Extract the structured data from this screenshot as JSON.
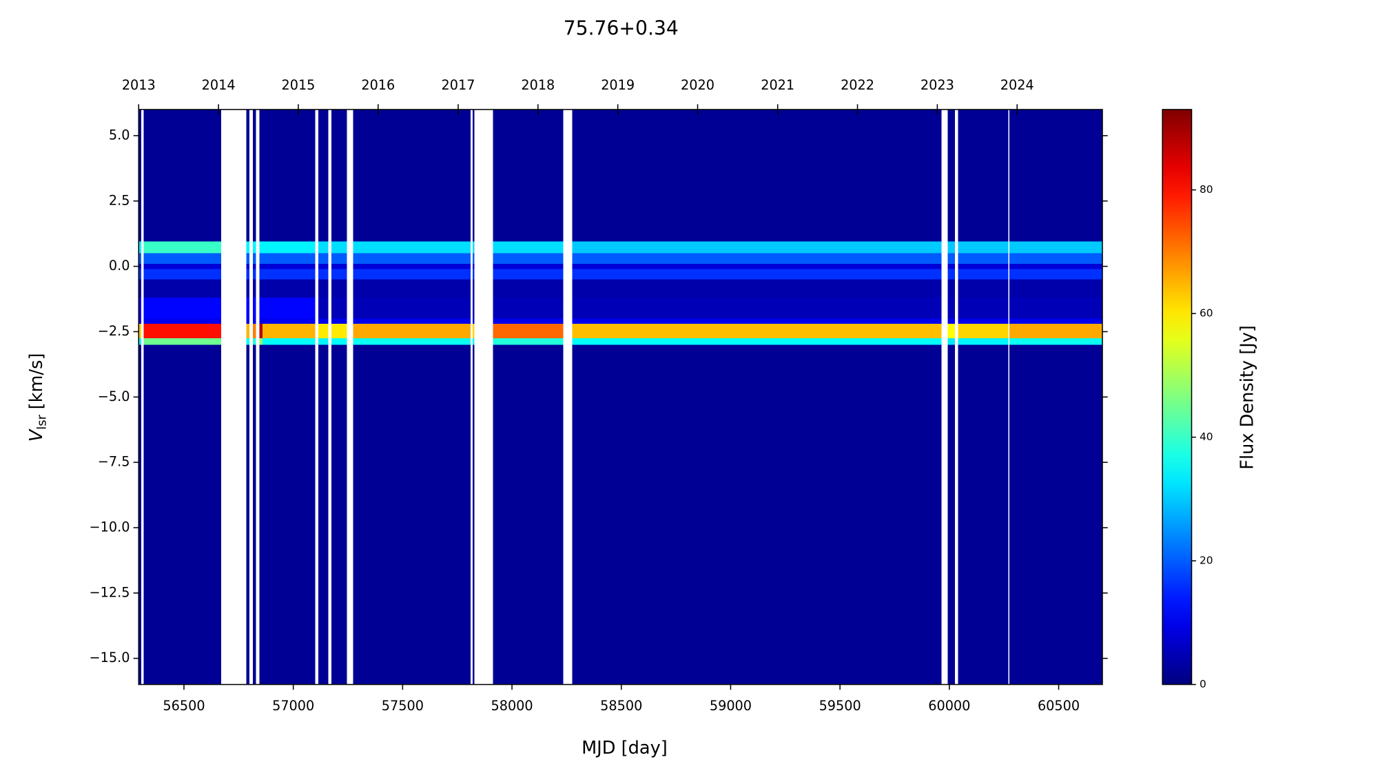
{
  "chart_data": {
    "type": "heatmap",
    "title": "75.76+0.34",
    "xlabel": "MJD [day]",
    "ylabel": [
      "V",
      "lsr",
      "[km/s]"
    ],
    "colorbar_label": "Flux Density [Jy]",
    "colormap": "jet",
    "xlim": [
      56293,
      60700
    ],
    "ylim": [
      -16,
      6
    ],
    "clim": [
      0,
      93
    ],
    "xticks": [
      56500,
      57000,
      57500,
      58000,
      58500,
      59000,
      59500,
      60000,
      60500
    ],
    "x2ticks": [
      {
        "value": 56293,
        "label": "2013"
      },
      {
        "value": 56658,
        "label": "2014"
      },
      {
        "value": 57023,
        "label": "2015"
      },
      {
        "value": 57388,
        "label": "2016"
      },
      {
        "value": 57754,
        "label": "2017"
      },
      {
        "value": 58119,
        "label": "2018"
      },
      {
        "value": 58484,
        "label": "2019"
      },
      {
        "value": 58849,
        "label": "2020"
      },
      {
        "value": 59215,
        "label": "2021"
      },
      {
        "value": 59580,
        "label": "2022"
      },
      {
        "value": 59945,
        "label": "2023"
      },
      {
        "value": 60310,
        "label": "2024"
      }
    ],
    "yticks": [
      {
        "value": 5,
        "label": "5.0"
      },
      2.5,
      {
        "value": 0,
        "label": "0.0"
      },
      {
        "value": -2.5,
        "label": "−2.5"
      },
      {
        "value": -5,
        "label": "−5.0"
      },
      {
        "value": -7.5,
        "label": "−7.5"
      },
      {
        "value": -10,
        "label": "−10.0"
      },
      {
        "value": -12.5,
        "label": "−12.5"
      },
      {
        "value": -15,
        "label": "−15.0"
      }
    ],
    "cticks": [
      0,
      20,
      40,
      60,
      80
    ],
    "x_edges": [
      56293,
      56305,
      56315,
      56670,
      56785,
      56800,
      56815,
      56830,
      56845,
      56860,
      57100,
      57115,
      57160,
      57175,
      57245,
      57273,
      57810,
      57820,
      57828,
      57913,
      58235,
      58276,
      59965,
      59992,
      60025,
      60040,
      60270,
      60275,
      60700
    ],
    "y_edges": [
      -16,
      -3.0,
      -2.75,
      -2.2,
      -2.0,
      -1.2,
      -0.5,
      -0.1,
      0.1,
      0.5,
      0.95,
      6
    ],
    "values": [
      [
        2,
        null,
        2,
        null,
        2,
        null,
        2,
        null,
        2,
        2,
        null,
        2,
        null,
        2,
        null,
        2,
        null,
        2,
        null,
        2,
        null,
        2,
        null,
        2,
        null,
        2,
        null,
        2
      ],
      [
        35,
        null,
        45,
        null,
        36,
        null,
        38,
        null,
        48,
        35,
        null,
        34,
        null,
        35,
        null,
        36,
        null,
        35,
        null,
        38,
        null,
        35,
        null,
        33,
        null,
        34,
        null,
        36
      ],
      [
        62,
        null,
        80,
        null,
        65,
        null,
        70,
        null,
        88,
        65,
        null,
        60,
        null,
        60,
        null,
        66,
        null,
        62,
        null,
        72,
        null,
        64,
        null,
        58,
        null,
        62,
        null,
        66
      ],
      [
        10,
        null,
        10,
        null,
        10,
        null,
        10,
        null,
        10,
        10,
        null,
        10,
        null,
        10,
        null,
        10,
        null,
        10,
        null,
        10,
        null,
        10,
        null,
        10,
        null,
        10,
        null,
        10
      ],
      [
        12,
        null,
        12,
        null,
        12,
        null,
        12,
        null,
        12,
        12,
        null,
        5,
        null,
        5,
        null,
        5,
        null,
        5,
        null,
        5,
        null,
        5,
        null,
        5,
        null,
        5,
        null,
        5
      ],
      [
        4,
        null,
        4,
        null,
        4,
        null,
        4,
        null,
        4,
        4,
        null,
        4,
        null,
        4,
        null,
        4,
        null,
        4,
        null,
        4,
        null,
        4,
        null,
        4,
        null,
        4,
        null,
        4
      ],
      [
        16,
        null,
        16,
        null,
        16,
        null,
        16,
        null,
        16,
        16,
        null,
        16,
        null,
        16,
        null,
        16,
        null,
        16,
        null,
        16,
        null,
        16,
        null,
        16,
        null,
        16,
        null,
        16
      ],
      [
        8,
        null,
        8,
        null,
        8,
        null,
        8,
        null,
        8,
        8,
        null,
        8,
        null,
        8,
        null,
        8,
        null,
        8,
        null,
        8,
        null,
        8,
        null,
        8,
        null,
        8,
        null,
        8
      ],
      [
        20,
        null,
        20,
        null,
        20,
        null,
        20,
        null,
        20,
        20,
        null,
        20,
        null,
        20,
        null,
        20,
        null,
        20,
        null,
        20,
        null,
        20,
        null,
        20,
        null,
        20,
        null,
        20
      ],
      [
        34,
        null,
        40,
        null,
        34,
        null,
        34,
        null,
        34,
        34,
        null,
        32,
        null,
        32,
        null,
        32,
        null,
        32,
        null,
        32,
        null,
        30,
        null,
        30,
        null,
        30,
        null,
        30
      ],
      [
        2,
        null,
        2,
        null,
        2,
        null,
        2,
        null,
        2,
        2,
        null,
        2,
        null,
        2,
        null,
        2,
        null,
        2,
        null,
        2,
        null,
        2,
        null,
        2,
        null,
        2,
        null,
        2
      ]
    ]
  }
}
